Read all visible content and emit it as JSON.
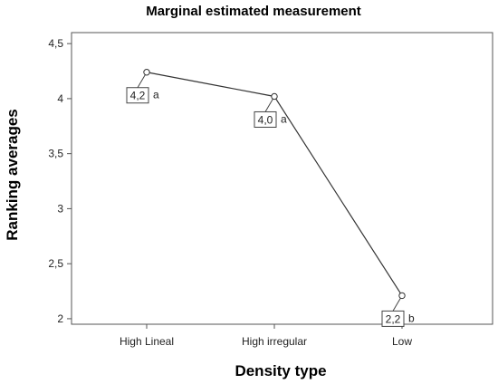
{
  "chart_data": {
    "type": "line",
    "title": "Marginal estimated measurement",
    "xlabel": "Density type",
    "ylabel": "Ranking averages",
    "categories": [
      "High Lineal",
      "High irregular",
      "Low"
    ],
    "values": [
      4.24,
      4.02,
      2.21
    ],
    "data_labels": [
      "4,2",
      "4,0",
      "2,2"
    ],
    "group_letters": [
      "a",
      "a",
      "b"
    ],
    "ylim": [
      1.95,
      4.6
    ],
    "yticks": [
      2,
      2.5,
      3,
      3.5,
      4,
      4.5
    ],
    "ytick_labels": [
      "2",
      "2,5",
      "3",
      "3,5",
      "4",
      "4,5"
    ],
    "grid": false,
    "colors": {
      "line": "#333333",
      "frame": "#555555"
    }
  }
}
